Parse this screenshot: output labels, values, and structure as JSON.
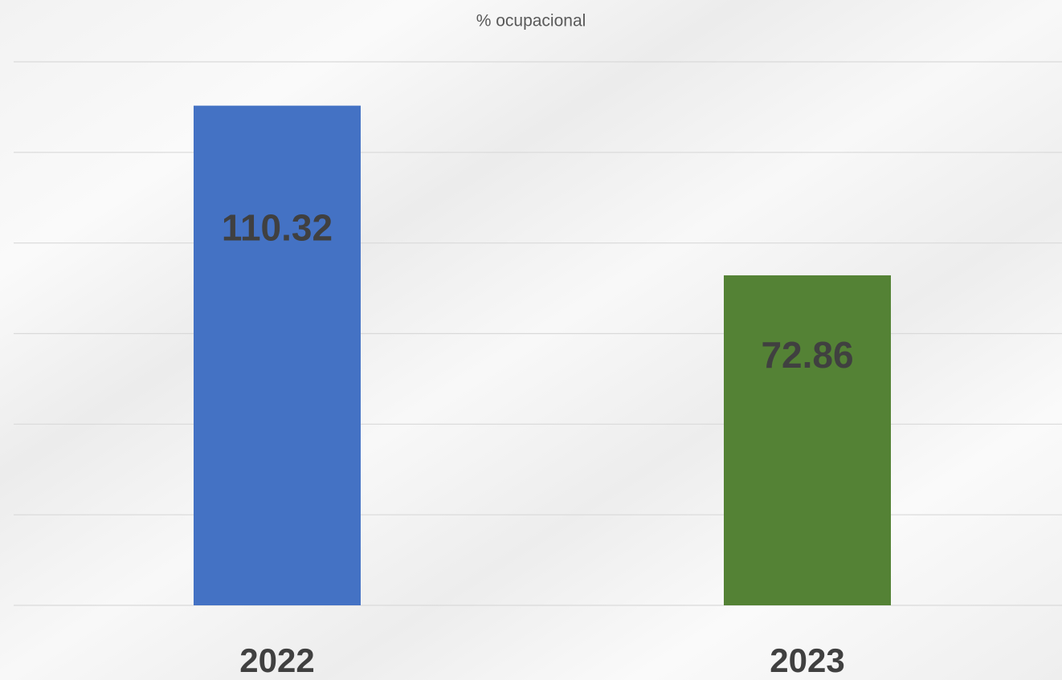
{
  "chart_data": {
    "type": "bar",
    "title": "% ocupacional",
    "categories": [
      "2022",
      "2023"
    ],
    "values": [
      110.32,
      72.86
    ],
    "colors": [
      "#4472c4",
      "#548235"
    ],
    "ylim": [
      0,
      120
    ],
    "yticks": [
      0,
      20,
      40,
      60,
      80,
      100,
      120
    ],
    "grid": true
  }
}
